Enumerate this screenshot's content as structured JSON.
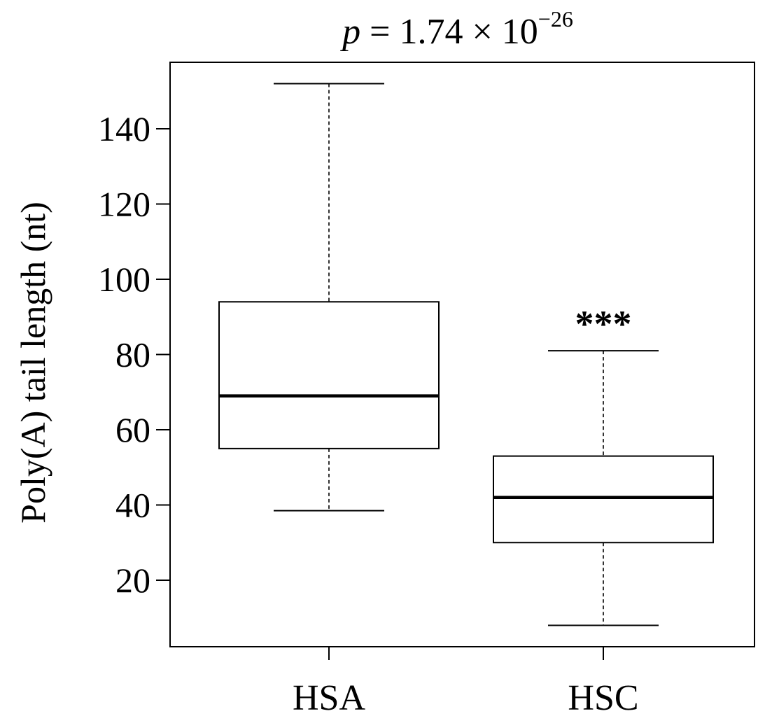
{
  "chart_data": {
    "type": "box",
    "title": {
      "p_symbol": "p",
      "equals": "=",
      "mantissa": "1.74",
      "times": "×",
      "base": "10",
      "exponent": "−26"
    },
    "xlabel": "",
    "ylabel": "Poly(A) tail length (nt)",
    "ylim": [
      0,
      155
    ],
    "yticks": [
      20,
      40,
      60,
      80,
      100,
      120,
      140
    ],
    "categories": [
      "HSA",
      "HSC"
    ],
    "boxes": [
      {
        "name": "HSA",
        "whisker_low": 38.5,
        "q1": 55,
        "median": 69,
        "q3": 94,
        "whisker_high": 152,
        "annotation": ""
      },
      {
        "name": "HSC",
        "whisker_low": 8,
        "q1": 30,
        "median": 42,
        "q3": 53,
        "whisker_high": 81,
        "annotation": "***"
      }
    ],
    "grid": false,
    "legend": "none"
  }
}
